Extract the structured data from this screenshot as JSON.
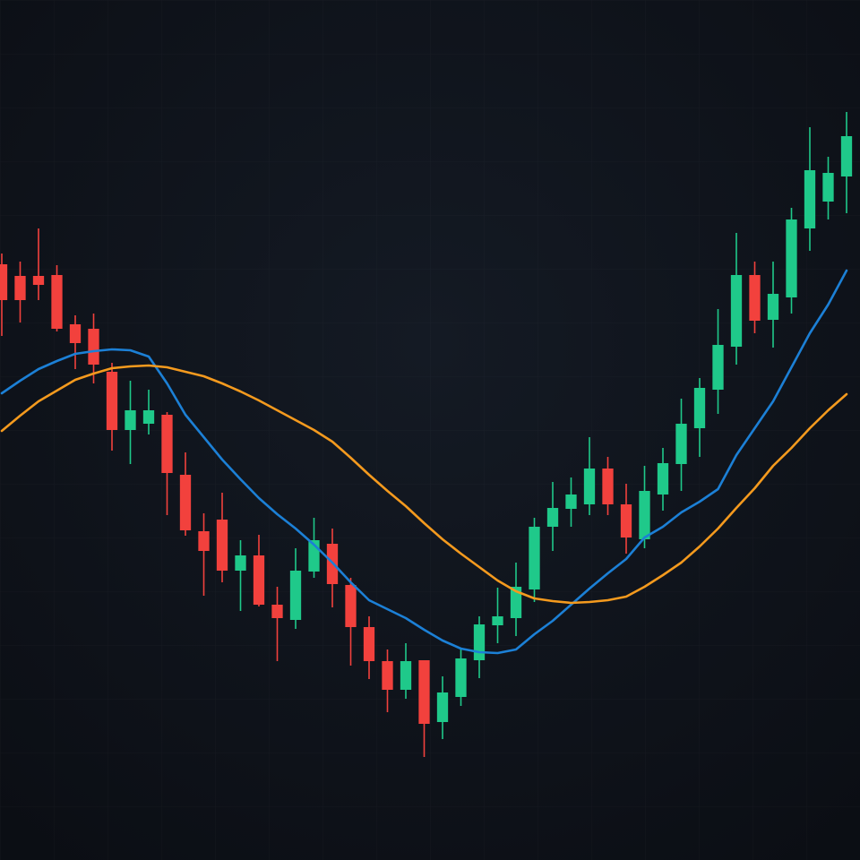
{
  "chart_data": {
    "type": "candlestick",
    "categories": [
      null,
      null,
      null,
      null,
      null,
      null,
      null,
      null,
      null,
      null,
      null,
      null,
      null,
      null,
      null,
      null,
      null,
      null,
      null,
      null,
      null,
      null,
      null,
      null,
      null,
      null,
      null,
      null,
      null,
      null,
      null,
      null,
      null,
      null,
      null,
      null,
      null,
      null,
      null,
      null,
      null,
      null,
      null,
      null,
      null,
      null,
      null
    ],
    "open": [
      665,
      652,
      652,
      653,
      598,
      593,
      545,
      480,
      487,
      497,
      430,
      367,
      380,
      323,
      340,
      285,
      268,
      322,
      353,
      307,
      260,
      222,
      190,
      223,
      154,
      182,
      223,
      262,
      270,
      302,
      372,
      392,
      397,
      437,
      397,
      358,
      408,
      442,
      482,
      525,
      573,
      653,
      603,
      628,
      705,
      735,
      763
    ],
    "high": [
      677,
      668,
      705,
      664,
      608,
      610,
      555,
      535,
      525,
      500,
      455,
      387,
      410,
      357,
      363,
      305,
      348,
      382,
      370,
      315,
      272,
      235,
      242,
      223,
      205,
      235,
      272,
      304,
      332,
      382,
      422,
      427,
      472,
      450,
      420,
      440,
      460,
      515,
      538,
      615,
      700,
      668,
      668,
      728,
      818,
      785,
      835
    ],
    "low": [
      585,
      600,
      625,
      590,
      548,
      532,
      457,
      442,
      475,
      385,
      362,
      295,
      310,
      278,
      283,
      222,
      258,
      315,
      282,
      217,
      202,
      165,
      180,
      115,
      135,
      172,
      203,
      242,
      250,
      288,
      345,
      372,
      385,
      385,
      342,
      348,
      390,
      412,
      450,
      498,
      553,
      588,
      572,
      610,
      680,
      715,
      722
    ],
    "close": [
      625,
      625,
      642,
      593,
      577,
      553,
      480,
      502,
      502,
      432,
      368,
      345,
      323,
      340,
      285,
      270,
      323,
      357,
      308,
      260,
      222,
      190,
      222,
      152,
      187,
      225,
      263,
      272,
      305,
      372,
      393,
      408,
      437,
      397,
      360,
      412,
      443,
      487,
      527,
      575,
      653,
      602,
      632,
      715,
      770,
      767,
      808
    ],
    "up_color": "#1fc98a",
    "down_color": "#f2413d",
    "ylim": [
      0,
      960
    ],
    "series": [
      {
        "color": "#1c80d6",
        "values": [
          521,
          535,
          548,
          557,
          565,
          568,
          570,
          569,
          562,
          532,
          497,
          472,
          447,
          425,
          404,
          386,
          370,
          352,
          332,
          310,
          290,
          280,
          270,
          257,
          245,
          236,
          232,
          231,
          235,
          252,
          267,
          285,
          303,
          320,
          336,
          360,
          372,
          388,
          400,
          414,
          452,
          482,
          512,
          550,
          588,
          620,
          658
        ]
      },
      {
        "color": "#f49a1e",
        "values": [
          479,
          496,
          512,
          524,
          536,
          543,
          549,
          551,
          552,
          550,
          545,
          540,
          532,
          523,
          513,
          502,
          491,
          480,
          467,
          449,
          430,
          412,
          395,
          376,
          358,
          342,
          327,
          312,
          300,
          292,
          289,
          287,
          288,
          290,
          294,
          305,
          318,
          332,
          350,
          370,
          393,
          415,
          440,
          460,
          482,
          502,
          520
        ]
      }
    ]
  }
}
